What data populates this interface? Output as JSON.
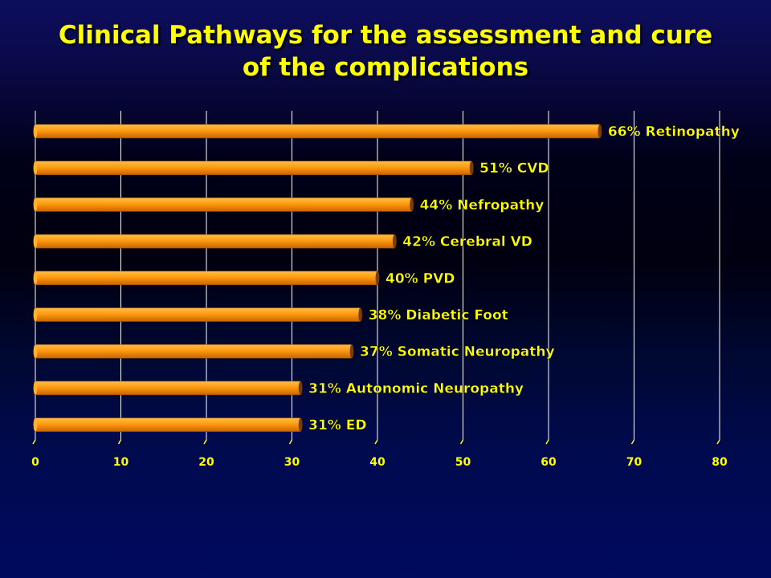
{
  "title": {
    "line1": "Clinical Pathways for the assessment and cure",
    "line2": "of the complications"
  },
  "colors": {
    "bar_top": "#ffc04a",
    "bar_mid": "#ff9a10",
    "bar_bottom": "#c86400",
    "label": "#ffff00",
    "grid": "#ffffff",
    "ticks": "#ffff00"
  },
  "chart_data": {
    "type": "bar",
    "orientation": "horizontal",
    "categories": [
      "66% Retinopathy",
      "51% CVD",
      "44% Nefropathy",
      "42% Cerebral VD",
      "40% PVD",
      "38% Diabetic Foot",
      "37% Somatic Neuropathy",
      "31% Autonomic Neuropathy",
      "31% ED"
    ],
    "values": [
      66,
      51,
      44,
      42,
      40,
      38,
      37,
      31,
      31
    ],
    "xlim": [
      0,
      80
    ],
    "xticks": [
      0,
      10,
      20,
      30,
      40,
      50,
      60,
      70,
      80
    ],
    "grid": true,
    "legend": "none"
  }
}
